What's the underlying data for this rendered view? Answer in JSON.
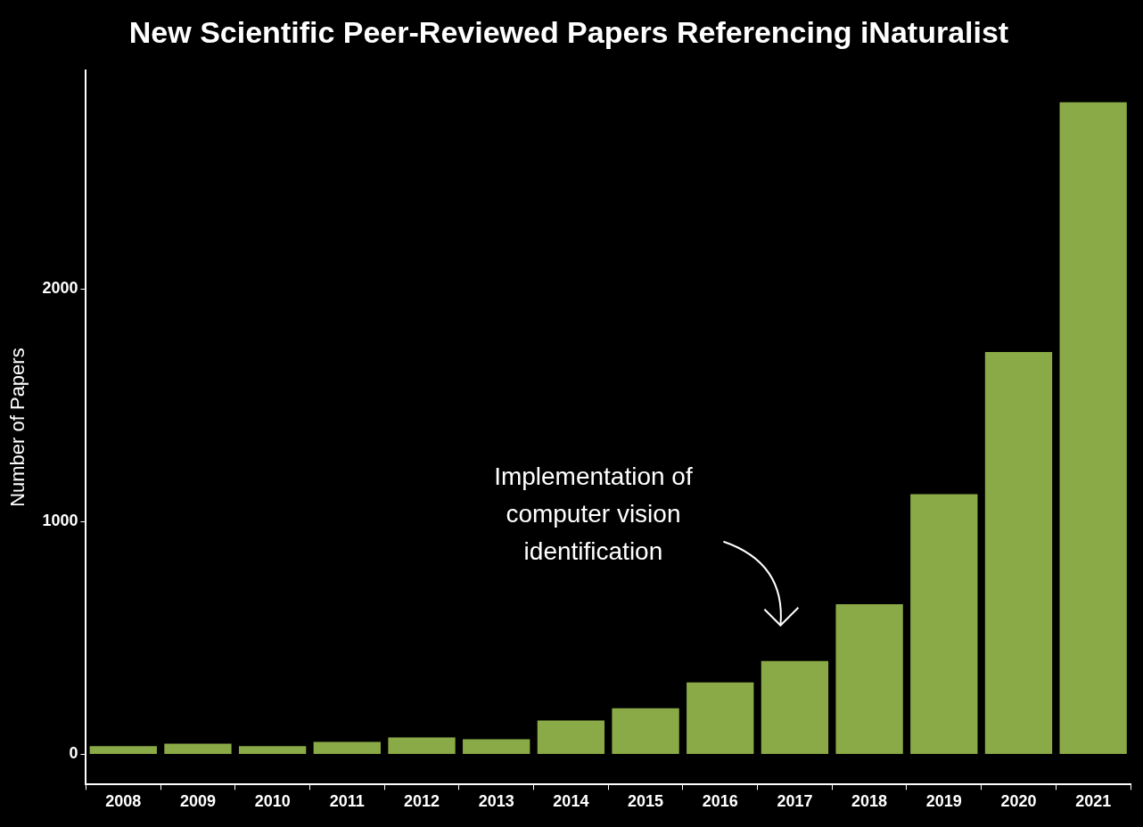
{
  "chart_data": {
    "type": "bar",
    "title": "New Scientific Peer-Reviewed Papers Referencing iNaturalist",
    "y_label": "Number of Papers",
    "categories": [
      "2008",
      "2009",
      "2010",
      "2011",
      "2012",
      "2013",
      "2014",
      "2015",
      "2016",
      "2017",
      "2018",
      "2019",
      "2020",
      "2021"
    ],
    "values": [
      35,
      46,
      35,
      53,
      73,
      65,
      145,
      198,
      309,
      401,
      645,
      1118,
      1729,
      2802
    ],
    "color": "#8aaa47",
    "ylim": [
      -130,
      2940
    ],
    "yticks": [
      0,
      1000,
      2000
    ],
    "grid": false,
    "annotation": {
      "text": "Implementation of\ncomputer vision\nidentification",
      "category": "2017"
    }
  }
}
